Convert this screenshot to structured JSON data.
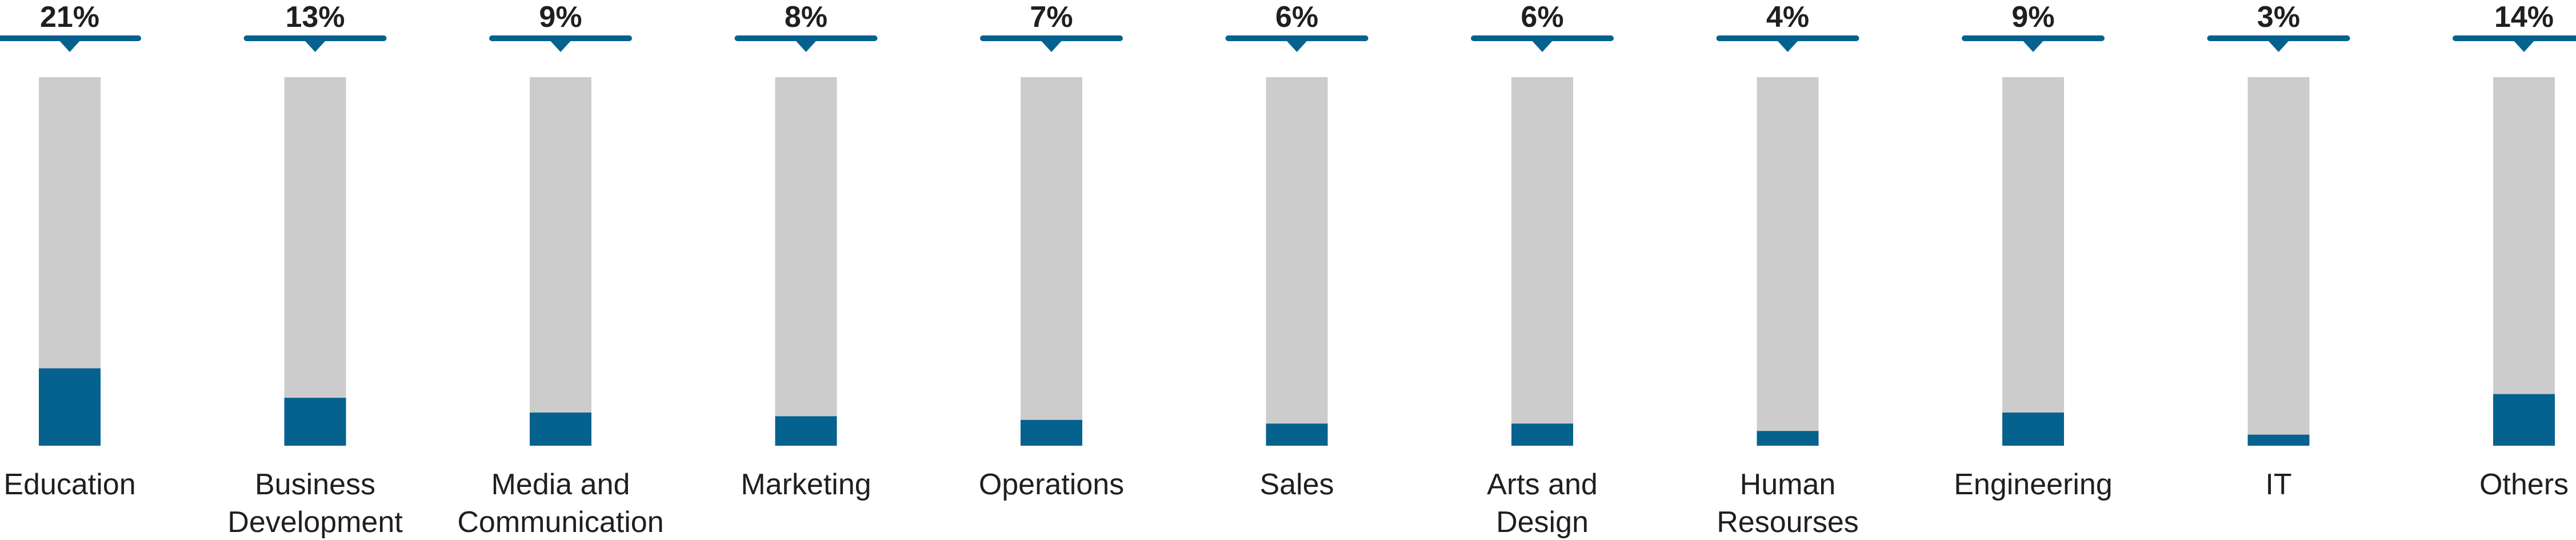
{
  "chart_data": {
    "type": "bar",
    "categories": [
      [
        "Education"
      ],
      [
        "Business",
        "Development"
      ],
      [
        "Media and",
        "Communication"
      ],
      [
        "Marketing"
      ],
      [
        "Operations"
      ],
      [
        "Sales"
      ],
      [
        "Arts and",
        "Design"
      ],
      [
        "Human",
        "Resourses"
      ],
      [
        "Engineering"
      ],
      [
        "IT"
      ],
      [
        "Others"
      ]
    ],
    "labels": [
      "21%",
      "13%",
      "9%",
      "8%",
      "7%",
      "6%",
      "6%",
      "4%",
      "9%",
      "3%",
      "14%"
    ],
    "values": [
      21,
      13,
      9,
      8,
      7,
      6,
      6,
      4,
      9,
      3,
      14
    ],
    "ylim": [
      0,
      100
    ],
    "colors": {
      "fill": "#05628f",
      "track": "#cccccc",
      "text": "#1f1f1f"
    }
  }
}
